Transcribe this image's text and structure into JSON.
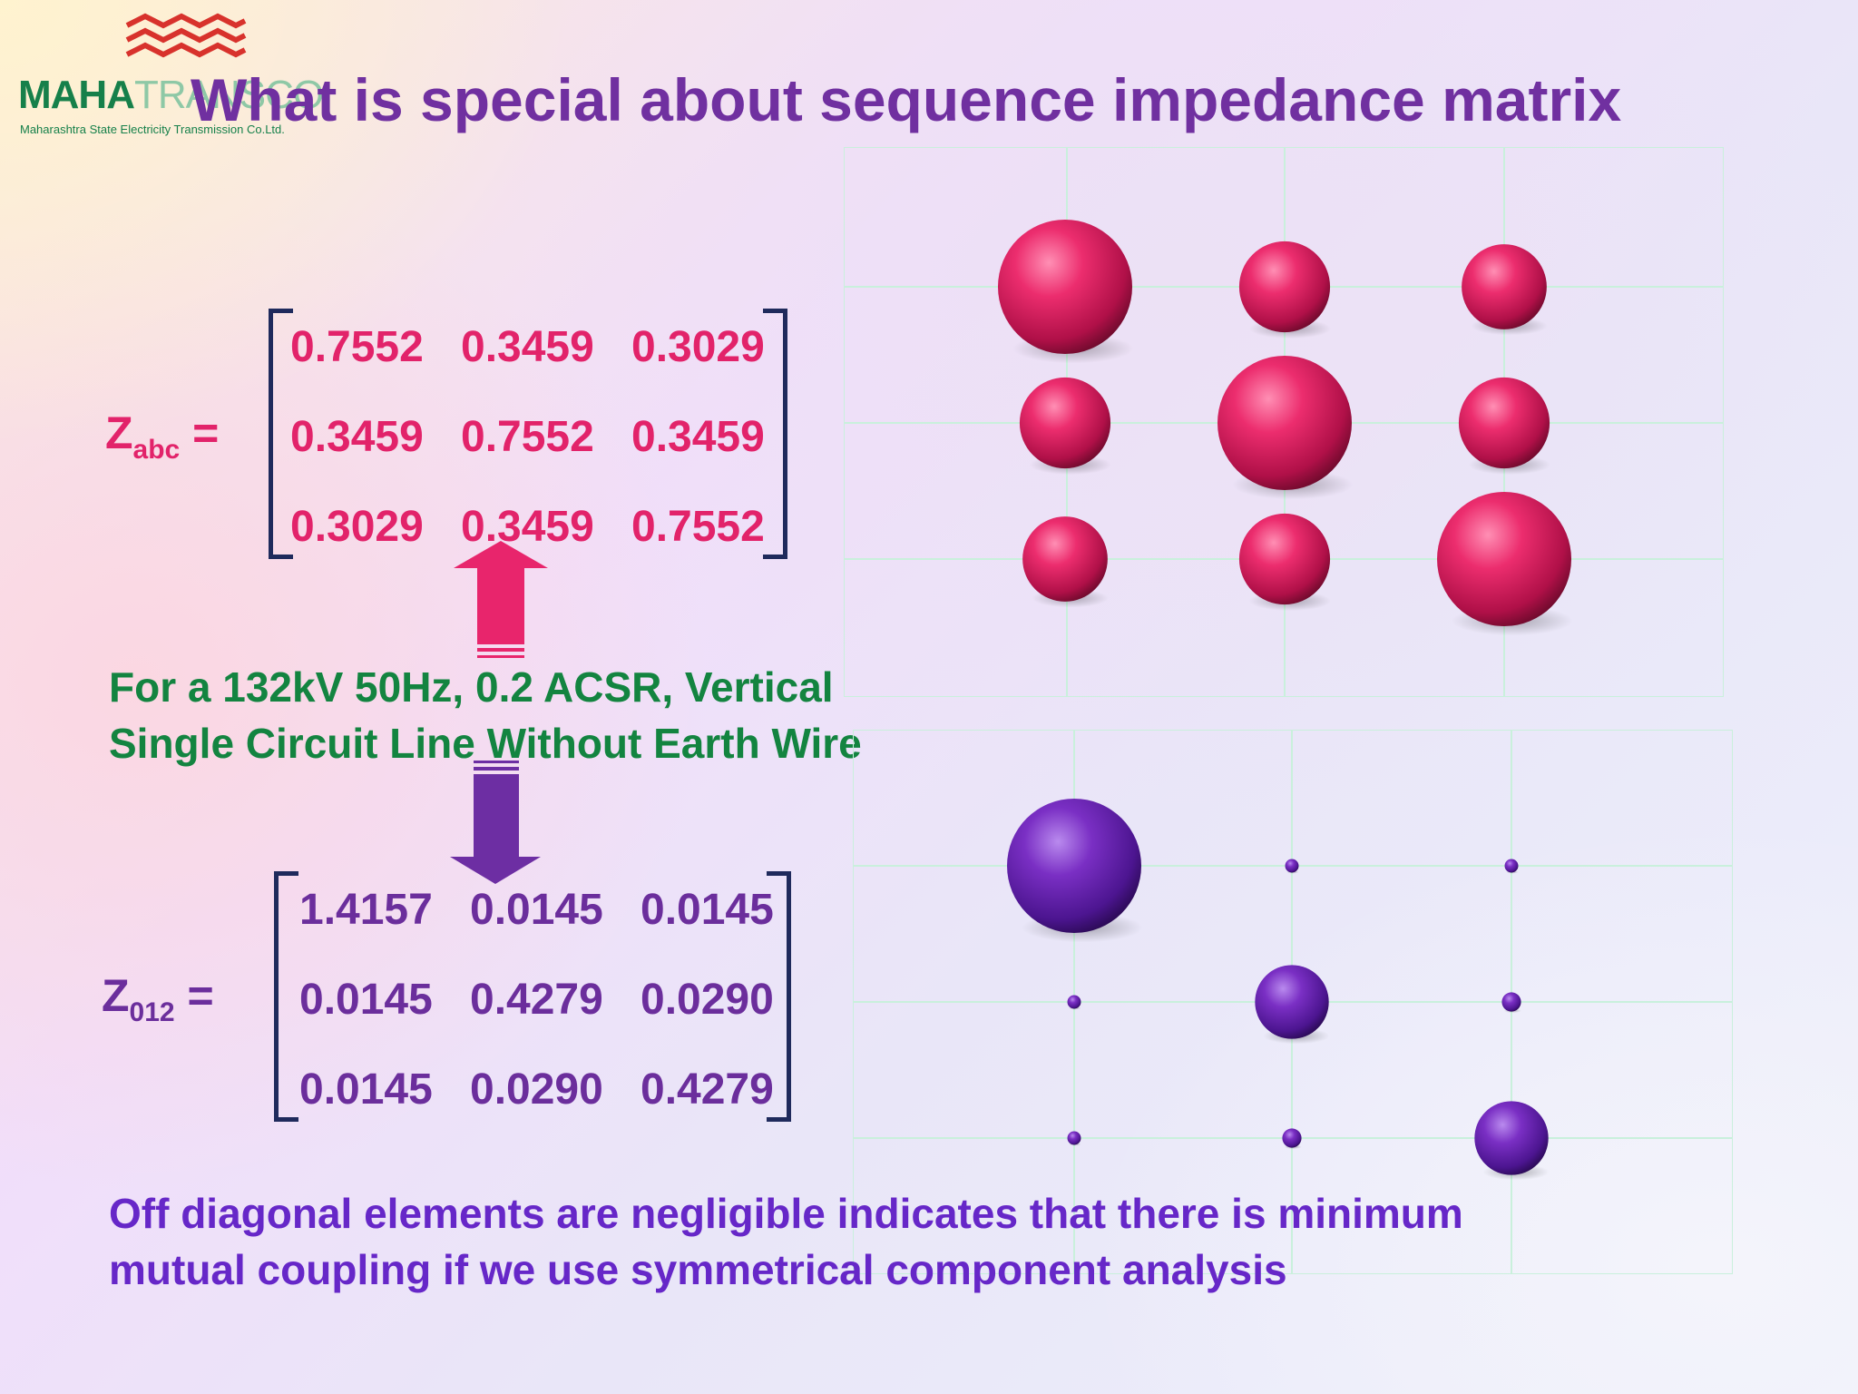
{
  "logo": {
    "brand_main": "MAHA",
    "brand_secondary": "TRANSCO",
    "tagline": "Maharashtra State Electricity Transmission Co.Ltd."
  },
  "title": "What is special about sequence impedance matrix",
  "zabc": {
    "symbol": "Z",
    "subscript": "abc",
    "equals": "=",
    "rows": [
      [
        "0.7552",
        "0.3459",
        "0.3029"
      ],
      [
        "0.3459",
        "0.7552",
        "0.3459"
      ],
      [
        "0.3029",
        "0.3459",
        "0.7552"
      ]
    ]
  },
  "z012": {
    "symbol": "Z",
    "subscript": "012",
    "equals": "=",
    "rows": [
      [
        "1.4157",
        "0.0145",
        "0.0145"
      ],
      [
        "0.0145",
        "0.4279",
        "0.0290"
      ],
      [
        "0.0145",
        "0.0290",
        "0.4279"
      ]
    ]
  },
  "line_description": {
    "line1": "For a 132kV 50Hz, 0.2 ACSR, Vertical",
    "line2": "Single Circuit Line Without Earth Wire"
  },
  "conclusion": {
    "line1": "Off diagonal elements are negligible indicates that there is minimum",
    "line2": "mutual coupling if we use symmetrical component analysis"
  },
  "colors": {
    "title": "#7030a0",
    "zabc_values": "#e2236a",
    "z012_values": "#6b2e9c",
    "description": "#138440",
    "conclusion": "#6627c8",
    "bracket": "#1f2a5c",
    "grid_lines": "#c9f0dc"
  },
  "sphere_grids": [
    {
      "matrix": "zabc",
      "color": "pink",
      "values": [
        [
          0.7552,
          0.3459,
          0.3029
        ],
        [
          0.3459,
          0.7552,
          0.3459
        ],
        [
          0.3029,
          0.3459,
          0.7552
        ]
      ]
    },
    {
      "matrix": "z012",
      "color": "purple",
      "values": [
        [
          1.4157,
          0.0145,
          0.0145
        ],
        [
          0.0145,
          0.4279,
          0.029
        ],
        [
          0.0145,
          0.029,
          0.4279
        ]
      ]
    }
  ]
}
